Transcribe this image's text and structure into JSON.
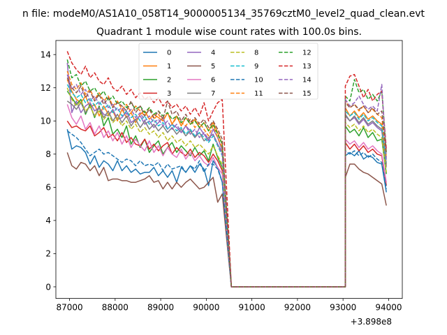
{
  "chart_data": {
    "type": "line",
    "suptitle": "n file: modeM0/AS1A10_058T14_9000005134_35769cztM0_level2_quad_clean.evt",
    "title": "Quadrant 1 module wise count rates with 100.0s bins.",
    "xlabel": "",
    "ylabel": "",
    "x_offset_label": "+3.898e8",
    "xlim": [
      86700,
      94300
    ],
    "ylim": [
      -0.7,
      14.85
    ],
    "x_ticks": [
      87000,
      88000,
      89000,
      90000,
      91000,
      92000,
      93000,
      94000
    ],
    "x_tick_labels": [
      "87000",
      "88000",
      "89000",
      "90000",
      "91000",
      "92000",
      "93000",
      "94000"
    ],
    "y_ticks": [
      0,
      2,
      4,
      6,
      8,
      10,
      12,
      14
    ],
    "y_tick_labels": [
      "0",
      "2",
      "4",
      "6",
      "8",
      "10",
      "12",
      "14"
    ],
    "x_start": 86950,
    "x_step": 100,
    "gap": {
      "drop_start": 90450,
      "zero_from": 90550,
      "zero_to": 93050,
      "recover_end": 93250,
      "x_end": 93950
    },
    "legend": {
      "location": "top-center",
      "columns": 4
    },
    "series": [
      {
        "name": "0",
        "color": "#1f77b4",
        "style": "solid",
        "before": [
          9.5,
          8.3,
          8.5,
          8.4,
          8.1,
          7.4,
          7.9,
          7.2,
          7.6,
          7.4,
          7.0,
          7.6,
          7.0,
          7.3,
          6.9,
          7.1,
          6.8,
          6.9,
          6.9,
          7.2,
          6.7,
          7.0,
          6.6,
          7.0,
          6.3,
          7.2,
          6.9,
          7.3,
          6.9,
          7.4,
          7.1,
          6.1,
          7.6,
          7.2,
          6.3
        ],
        "after": [
          7.9,
          8.1,
          7.9,
          8.2,
          7.7,
          7.9,
          7.8,
          7.5,
          7.4,
          5.7
        ]
      },
      {
        "name": "1",
        "color": "#ff7f0e",
        "style": "solid",
        "before": [
          12.5,
          11.8,
          11.3,
          11.1,
          11.5,
          10.8,
          11.0,
          10.3,
          10.9,
          10.4,
          10.6,
          10.0,
          10.7,
          10.2,
          10.5,
          9.9,
          10.4,
          10.6,
          10.1,
          10.4,
          10.2,
          10.0,
          10.5,
          9.8,
          10.3,
          9.7,
          10.2,
          9.8,
          10.1,
          9.6,
          9.9,
          9.4,
          9.9,
          9.3,
          8.6
        ],
        "after": [
          10.8,
          10.3,
          10.6,
          10.2,
          10.5,
          10.1,
          10.3,
          10.0,
          9.8,
          7.4
        ]
      },
      {
        "name": "2",
        "color": "#2ca02c",
        "style": "solid",
        "before": [
          11.8,
          11.4,
          11.0,
          11.3,
          10.4,
          11.0,
          10.2,
          10.9,
          9.7,
          10.2,
          9.2,
          9.5,
          9.0,
          9.7,
          8.6,
          9.1,
          8.4,
          8.9,
          8.1,
          8.5,
          8.8,
          8.0,
          8.4,
          8.7,
          8.1,
          8.5,
          8.2,
          7.9,
          8.4,
          7.9,
          8.2,
          7.6,
          8.6,
          7.8,
          7.2
        ],
        "after": [
          9.7,
          9.3,
          9.5,
          9.1,
          9.6,
          9.0,
          9.3,
          8.8,
          8.9,
          6.8
        ]
      },
      {
        "name": "3",
        "color": "#d62728",
        "style": "solid",
        "before": [
          10.0,
          9.6,
          9.7,
          9.5,
          9.4,
          9.7,
          9.1,
          9.3,
          9.6,
          9.0,
          9.2,
          8.8,
          9.3,
          8.7,
          9.0,
          8.6,
          8.5,
          8.9,
          8.3,
          8.6,
          8.2,
          8.5,
          8.7,
          8.0,
          8.4,
          8.1,
          7.9,
          8.3,
          7.8,
          8.1,
          7.9,
          7.5,
          8.0,
          7.6,
          7.0
        ],
        "after": [
          8.7,
          8.3,
          8.6,
          8.2,
          8.5,
          8.1,
          8.3,
          8.0,
          7.9,
          6.1
        ]
      },
      {
        "name": "4",
        "color": "#9467bd",
        "style": "solid",
        "before": [
          13.5,
          10.5,
          11.2,
          10.5,
          10.9,
          11.1,
          10.6,
          10.8,
          10.4,
          10.3,
          10.7,
          10.1,
          10.2,
          10.6,
          9.9,
          10.1,
          10.3,
          9.8,
          10.0,
          9.6,
          9.9,
          10.2,
          9.5,
          9.8,
          9.6,
          9.3,
          9.7,
          9.4,
          9.0,
          9.6,
          9.2,
          8.8,
          9.5,
          9.0,
          8.2
        ],
        "after": [
          10.3,
          10.0,
          10.2,
          9.8,
          10.1,
          9.7,
          9.9,
          9.6,
          9.4,
          7.2
        ]
      },
      {
        "name": "5",
        "color": "#8c564b",
        "style": "solid",
        "before": [
          8.1,
          7.3,
          7.1,
          7.5,
          7.4,
          7.0,
          7.3,
          6.7,
          7.2,
          6.4,
          6.5,
          6.5,
          6.4,
          6.4,
          6.3,
          6.3,
          6.4,
          6.5,
          6.7,
          6.3,
          6.4,
          5.9,
          6.3,
          5.9,
          6.3,
          6.0,
          6.3,
          6.5,
          6.2,
          5.9,
          6.0,
          6.3,
          6.6,
          5.1,
          5.6
        ],
        "after": [
          6.6,
          7.4,
          7.4,
          7.1,
          6.9,
          6.8,
          6.6,
          6.4,
          6.2,
          4.9
        ]
      },
      {
        "name": "6",
        "color": "#e377c2",
        "style": "solid",
        "before": [
          11.0,
          10.2,
          9.8,
          10.3,
          9.5,
          9.9,
          9.2,
          9.7,
          9.0,
          9.4,
          8.8,
          9.3,
          8.6,
          9.1,
          8.4,
          8.9,
          8.5,
          8.2,
          8.8,
          8.1,
          8.5,
          7.9,
          8.4,
          8.0,
          7.8,
          8.3,
          7.7,
          8.1,
          7.6,
          7.9,
          7.5,
          7.3,
          7.8,
          7.2,
          6.8
        ],
        "after": [
          8.9,
          8.6,
          8.8,
          8.4,
          8.7,
          8.3,
          8.5,
          8.2,
          8.0,
          6.3
        ]
      },
      {
        "name": "7",
        "color": "#7f7f7f",
        "style": "solid",
        "before": [
          11.2,
          11.0,
          10.7,
          11.1,
          10.5,
          10.9,
          10.3,
          10.8,
          10.2,
          10.6,
          10.0,
          10.4,
          9.9,
          10.3,
          9.7,
          10.1,
          9.6,
          10.0,
          9.5,
          9.8,
          9.4,
          9.7,
          9.3,
          9.6,
          9.2,
          9.5,
          9.1,
          9.4,
          9.0,
          9.3,
          8.8,
          9.0,
          9.2,
          8.6,
          8.1
        ],
        "after": [
          10.4,
          10.0,
          10.3,
          9.9,
          10.2,
          9.8,
          10.0,
          9.7,
          9.5,
          7.3
        ]
      },
      {
        "name": "8",
        "color": "#bcbd22",
        "style": "dashed",
        "before": [
          12.0,
          11.3,
          10.9,
          11.2,
          10.6,
          10.9,
          10.3,
          10.6,
          10.1,
          10.4,
          9.9,
          10.2,
          9.7,
          10.0,
          9.5,
          9.8,
          9.3,
          9.6,
          9.2,
          9.4,
          9.0,
          9.3,
          8.8,
          9.1,
          8.7,
          8.9,
          8.5,
          8.8,
          8.4,
          8.6,
          8.3,
          8.0,
          8.5,
          7.9,
          7.4
        ],
        "after": [
          9.9,
          9.6,
          9.8,
          9.4,
          9.7,
          9.3,
          9.5,
          9.2,
          9.0,
          6.9
        ]
      },
      {
        "name": "9",
        "color": "#17becf",
        "style": "dashed",
        "before": [
          12.2,
          11.7,
          11.4,
          11.6,
          11.1,
          11.4,
          10.9,
          11.2,
          10.7,
          11.0,
          10.5,
          10.8,
          10.3,
          10.6,
          10.2,
          10.4,
          10.0,
          10.3,
          9.8,
          10.1,
          9.7,
          9.9,
          9.5,
          9.8,
          9.4,
          9.6,
          9.2,
          9.5,
          9.1,
          9.3,
          9.0,
          8.7,
          9.1,
          8.5,
          7.9
        ],
        "after": [
          10.6,
          10.3,
          10.5,
          10.1,
          10.4,
          10.0,
          10.2,
          9.9,
          9.7,
          7.5
        ]
      },
      {
        "name": "10",
        "color": "#1f77b4",
        "style": "dashed",
        "before": [
          9.4,
          9.2,
          9.0,
          8.7,
          8.3,
          7.9,
          8.1,
          8.3,
          8.0,
          8.1,
          7.9,
          7.7,
          7.5,
          7.7,
          7.6,
          7.3,
          7.6,
          7.3,
          7.4,
          7.3,
          7.5,
          7.0,
          7.4,
          7.1,
          7.2,
          7.3,
          6.9,
          7.3,
          7.1,
          7.6,
          6.9,
          7.4,
          7.4,
          7.1,
          6.3
        ],
        "after": [
          8.2,
          8.0,
          8.2,
          7.9,
          8.1,
          7.8,
          8.0,
          7.7,
          7.5,
          5.9
        ]
      },
      {
        "name": "11",
        "color": "#ff7f0e",
        "style": "dashed",
        "before": [
          13.0,
          12.2,
          11.9,
          12.3,
          11.6,
          11.9,
          11.3,
          11.7,
          11.2,
          11.5,
          10.9,
          11.2,
          10.7,
          11.0,
          10.5,
          10.9,
          10.6,
          10.3,
          10.8,
          10.1,
          10.4,
          10.0,
          10.5,
          9.8,
          10.2,
          9.9,
          9.7,
          10.1,
          9.6,
          9.9,
          9.5,
          9.1,
          9.7,
          9.0,
          8.4
        ],
        "after": [
          11.2,
          10.8,
          11.0,
          10.6,
          10.9,
          10.5,
          10.7,
          10.4,
          10.2,
          7.8
        ]
      },
      {
        "name": "12",
        "color": "#2ca02c",
        "style": "dashed",
        "before": [
          13.7,
          12.6,
          12.8,
          12.1,
          12.4,
          11.8,
          12.0,
          11.5,
          11.8,
          11.2,
          11.5,
          11.0,
          11.2,
          10.8,
          11.1,
          10.7,
          10.9,
          10.5,
          10.8,
          10.4,
          10.6,
          10.3,
          10.5,
          10.1,
          10.3,
          9.9,
          10.2,
          9.8,
          10.0,
          9.6,
          9.9,
          9.4,
          9.8,
          9.2,
          8.6
        ],
        "after": [
          11.5,
          11.2,
          12.5,
          11.7,
          11.9,
          11.3,
          11.6,
          11.2,
          11.8,
          8.1
        ]
      },
      {
        "name": "13",
        "color": "#d62728",
        "style": "dashed",
        "before": [
          14.2,
          13.5,
          13.1,
          12.8,
          13.3,
          12.6,
          12.9,
          12.4,
          12.2,
          12.6,
          12.0,
          11.8,
          12.1,
          11.6,
          11.9,
          11.4,
          11.7,
          11.3,
          11.5,
          11.1,
          11.4,
          10.9,
          11.2,
          10.8,
          11.0,
          10.6,
          10.9,
          10.4,
          10.8,
          10.3,
          11.1,
          10.0,
          10.6,
          11.1,
          11.3
        ],
        "after": [
          12.1,
          12.7,
          12.8,
          12.1,
          11.4,
          11.9,
          11.2,
          11.6,
          11.8,
          8.3
        ]
      },
      {
        "name": "14",
        "color": "#9467bd",
        "style": "dashed",
        "before": [
          12.8,
          11.9,
          12.2,
          11.6,
          11.9,
          11.2,
          11.5,
          11.0,
          11.3,
          10.8,
          11.0,
          10.6,
          10.8,
          10.4,
          10.7,
          10.2,
          10.5,
          10.0,
          10.3,
          9.9,
          10.1,
          9.7,
          10.0,
          9.5,
          9.8,
          9.3,
          9.7,
          9.2,
          9.5,
          9.0,
          9.3,
          8.9,
          9.2,
          8.6,
          8.0
        ],
        "after": [
          11.3,
          10.9,
          11.1,
          11.5,
          11.0,
          10.7,
          10.9,
          10.6,
          12.2,
          7.6
        ]
      },
      {
        "name": "15",
        "color": "#8c564b",
        "style": "dashed",
        "before": [
          12.6,
          12.0,
          11.7,
          12.1,
          11.4,
          11.8,
          11.2,
          11.6,
          11.0,
          11.4,
          10.8,
          11.1,
          10.9,
          10.6,
          11.2,
          10.5,
          10.9,
          10.3,
          10.7,
          10.2,
          10.6,
          10.1,
          11.2,
          10.4,
          10.6,
          10.0,
          10.4,
          9.9,
          10.2,
          9.8,
          10.1,
          9.6,
          10.0,
          9.5,
          8.9
        ],
        "after": [
          11.1,
          10.8,
          11.0,
          10.7,
          10.9,
          10.5,
          10.8,
          10.4,
          10.6,
          8.0
        ]
      }
    ]
  }
}
